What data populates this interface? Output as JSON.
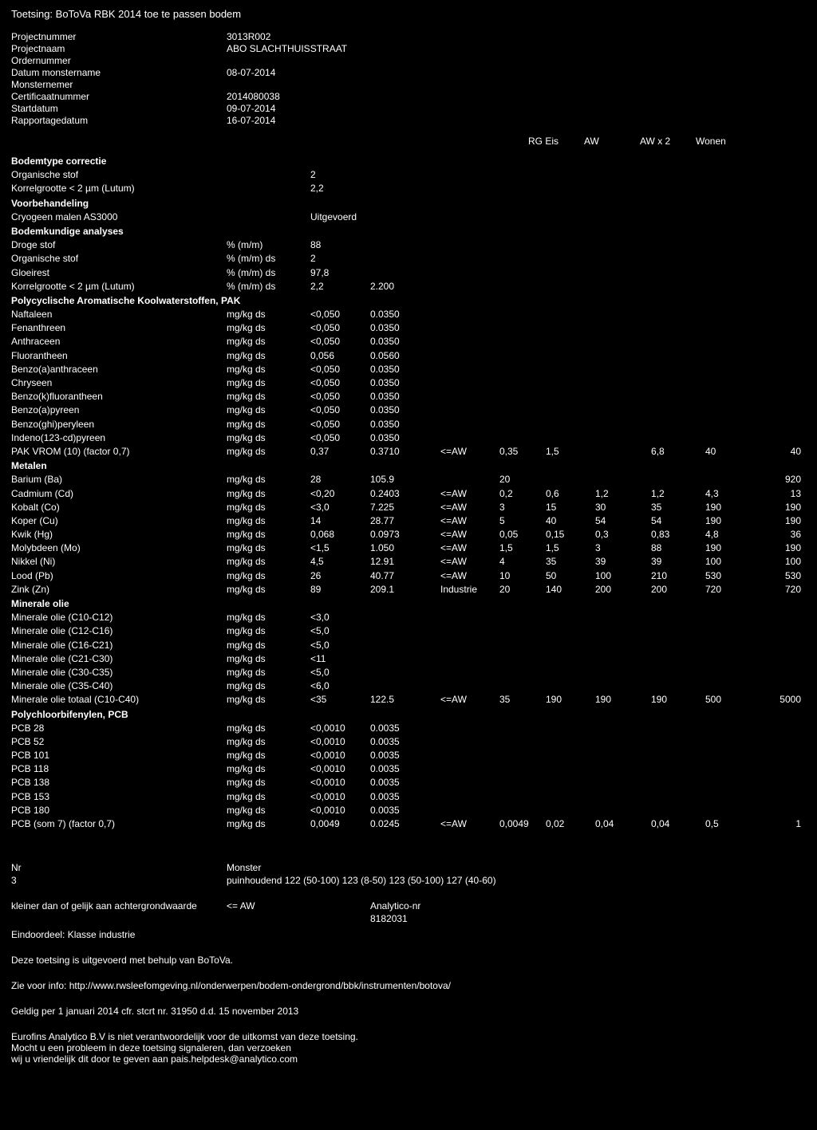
{
  "title": "Toetsing: BoToVa RBK 2014 toe te passen bodem",
  "meta": [
    {
      "label": "Projectnummer",
      "value": "3013R002"
    },
    {
      "label": "Projectnaam",
      "value": "ABO SLACHTHUISSTRAAT"
    },
    {
      "label": "Ordernummer",
      "value": ""
    },
    {
      "label": "Datum monstername",
      "value": "08-07-2014"
    },
    {
      "label": "Monsternemer",
      "value": ""
    },
    {
      "label": "Certificaatnummer",
      "value": "2014080038"
    },
    {
      "label": "Startdatum",
      "value": "09-07-2014"
    },
    {
      "label": "Rapportagedatum",
      "value": "16-07-2014"
    }
  ],
  "header_cols": [
    "RG Eis",
    "AW",
    "AW x 2",
    "Wonen"
  ],
  "sections": [
    {
      "title": "Bodemtype correctie",
      "rows": [
        {
          "name": "Organische stof",
          "unit": "",
          "raw": "2"
        },
        {
          "name": "Korrelgrootte < 2 µm (Lutum)",
          "unit": "",
          "raw": "2,2"
        }
      ]
    },
    {
      "title": "Voorbehandeling",
      "rows": [
        {
          "name": "Cryogeen malen AS3000",
          "unit": "",
          "raw": "Uitgevoerd"
        }
      ]
    },
    {
      "title": "Bodemkundige analyses",
      "rows": [
        {
          "name": "Droge stof",
          "unit": "% (m/m)",
          "raw": "88"
        },
        {
          "name": "Organische stof",
          "unit": "% (m/m) ds",
          "raw": "2"
        },
        {
          "name": "Gloeirest",
          "unit": "% (m/m) ds",
          "raw": "97,8"
        },
        {
          "name": "Korrelgrootte < 2 µm (Lutum)",
          "unit": "% (m/m) ds",
          "raw": "2,2",
          "val": "2.200"
        }
      ]
    },
    {
      "title": "Polycyclische Aromatische Koolwaterstoffen, PAK",
      "rows": [
        {
          "name": "Naftaleen",
          "unit": "mg/kg ds",
          "raw": "<0,050",
          "val": "0.0350"
        },
        {
          "name": "Fenanthreen",
          "unit": "mg/kg ds",
          "raw": "<0,050",
          "val": "0.0350"
        },
        {
          "name": "Anthraceen",
          "unit": "mg/kg ds",
          "raw": "<0,050",
          "val": "0.0350"
        },
        {
          "name": "Fluorantheen",
          "unit": "mg/kg ds",
          "raw": "0,056",
          "val": "0.0560"
        },
        {
          "name": "Benzo(a)anthraceen",
          "unit": "mg/kg ds",
          "raw": "<0,050",
          "val": "0.0350"
        },
        {
          "name": "Chryseen",
          "unit": "mg/kg ds",
          "raw": "<0,050",
          "val": "0.0350"
        },
        {
          "name": "Benzo(k)fluorantheen",
          "unit": "mg/kg ds",
          "raw": "<0,050",
          "val": "0.0350"
        },
        {
          "name": "Benzo(a)pyreen",
          "unit": "mg/kg ds",
          "raw": "<0,050",
          "val": "0.0350"
        },
        {
          "name": "Benzo(ghi)peryleen",
          "unit": "mg/kg ds",
          "raw": "<0,050",
          "val": "0.0350"
        },
        {
          "name": "Indeno(123-cd)pyreen",
          "unit": "mg/kg ds",
          "raw": "<0,050",
          "val": "0.0350"
        },
        {
          "name": "PAK VROM (10) (factor 0,7)",
          "unit": "mg/kg ds",
          "raw": "0,37",
          "val": "0.3710",
          "rg": "<=AW",
          "eis": "0,35",
          "aw": "1,5",
          "awx2": "",
          "wonen": "6,8",
          "ext1": "40",
          "ext2": "40"
        }
      ]
    },
    {
      "title": "Metalen",
      "rows": [
        {
          "name": "Barium (Ba)",
          "unit": "mg/kg ds",
          "raw": "28",
          "val": "105.9",
          "rg": "",
          "eis": "20",
          "aw": "",
          "awx2": "",
          "wonen": "",
          "ext1": "",
          "ext2": "920"
        },
        {
          "name": "Cadmium (Cd)",
          "unit": "mg/kg ds",
          "raw": "<0,20",
          "val": "0.2403",
          "rg": "<=AW",
          "eis": "0,2",
          "aw": "0,6",
          "awx2": "1,2",
          "wonen": "1,2",
          "ext1": "4,3",
          "ext2": "13"
        },
        {
          "name": "Kobalt (Co)",
          "unit": "mg/kg ds",
          "raw": "<3,0",
          "val": "7.225",
          "rg": "<=AW",
          "eis": "3",
          "aw": "15",
          "awx2": "30",
          "wonen": "35",
          "ext1": "190",
          "ext2": "190"
        },
        {
          "name": "Koper (Cu)",
          "unit": "mg/kg ds",
          "raw": "14",
          "val": "28.77",
          "rg": "<=AW",
          "eis": "5",
          "aw": "40",
          "awx2": "54",
          "wonen": "54",
          "ext1": "190",
          "ext2": "190"
        },
        {
          "name": "Kwik (Hg)",
          "unit": "mg/kg ds",
          "raw": "0,068",
          "val": "0.0973",
          "rg": "<=AW",
          "eis": "0,05",
          "aw": "0,15",
          "awx2": "0,3",
          "wonen": "0,83",
          "ext1": "4,8",
          "ext2": "36"
        },
        {
          "name": "Molybdeen (Mo)",
          "unit": "mg/kg ds",
          "raw": "<1,5",
          "val": "1.050",
          "rg": "<=AW",
          "eis": "1,5",
          "aw": "1,5",
          "awx2": "3",
          "wonen": "88",
          "ext1": "190",
          "ext2": "190"
        },
        {
          "name": "Nikkel (Ni)",
          "unit": "mg/kg ds",
          "raw": "4,5",
          "val": "12.91",
          "rg": "<=AW",
          "eis": "4",
          "aw": "35",
          "awx2": "39",
          "wonen": "39",
          "ext1": "100",
          "ext2": "100"
        },
        {
          "name": "Lood (Pb)",
          "unit": "mg/kg ds",
          "raw": "26",
          "val": "40.77",
          "rg": "<=AW",
          "eis": "10",
          "aw": "50",
          "awx2": "100",
          "wonen": "210",
          "ext1": "530",
          "ext2": "530"
        },
        {
          "name": "Zink (Zn)",
          "unit": "mg/kg ds",
          "raw": "89",
          "val": "209.1",
          "rg": "Industrie",
          "eis": "20",
          "aw": "140",
          "awx2": "200",
          "wonen": "200",
          "ext1": "720",
          "ext2": "720"
        }
      ]
    },
    {
      "title": "Minerale olie",
      "rows": [
        {
          "name": "Minerale olie (C10-C12)",
          "unit": "mg/kg ds",
          "raw": "<3,0"
        },
        {
          "name": "Minerale olie (C12-C16)",
          "unit": "mg/kg ds",
          "raw": "<5,0"
        },
        {
          "name": "Minerale olie (C16-C21)",
          "unit": "mg/kg ds",
          "raw": "<5,0"
        },
        {
          "name": "Minerale olie (C21-C30)",
          "unit": "mg/kg ds",
          "raw": "<11"
        },
        {
          "name": "Minerale olie (C30-C35)",
          "unit": "mg/kg ds",
          "raw": "<5,0"
        },
        {
          "name": "Minerale olie (C35-C40)",
          "unit": "mg/kg ds",
          "raw": "<6,0"
        },
        {
          "name": "Minerale olie totaal (C10-C40)",
          "unit": "mg/kg ds",
          "raw": "<35",
          "val": "122.5",
          "rg": "<=AW",
          "eis": "35",
          "aw": "190",
          "awx2": "190",
          "wonen": "190",
          "ext1": "500",
          "ext2": "5000"
        }
      ]
    },
    {
      "title": "Polychloorbifenylen, PCB",
      "rows": [
        {
          "name": "PCB 28",
          "unit": "mg/kg ds",
          "raw": "<0,0010",
          "val": "0.0035"
        },
        {
          "name": "PCB 52",
          "unit": "mg/kg ds",
          "raw": "<0,0010",
          "val": "0.0035"
        },
        {
          "name": "PCB 101",
          "unit": "mg/kg ds",
          "raw": "<0,0010",
          "val": "0.0035"
        },
        {
          "name": "PCB 118",
          "unit": "mg/kg ds",
          "raw": "<0,0010",
          "val": "0.0035"
        },
        {
          "name": "PCB 138",
          "unit": "mg/kg ds",
          "raw": "<0,0010",
          "val": "0.0035"
        },
        {
          "name": "PCB 153",
          "unit": "mg/kg ds",
          "raw": "<0,0010",
          "val": "0.0035"
        },
        {
          "name": "PCB 180",
          "unit": "mg/kg ds",
          "raw": "<0,0010",
          "val": "0.0035"
        },
        {
          "name": "PCB (som 7) (factor 0,7)",
          "unit": "mg/kg ds",
          "raw": "0,0049",
          "val": "0.0245",
          "rg": "<=AW",
          "eis": "0,0049",
          "aw": "0,02",
          "awx2": "0,04",
          "wonen": "0,04",
          "ext1": "0,5",
          "ext2": "1"
        }
      ]
    }
  ],
  "footer": {
    "nr_label": "Nr",
    "nr_value": "3",
    "monster_label": "Monster",
    "monster_value": "puinhoudend 122 (50-100) 123 (8-50) 123 (50-100) 127 (40-60)",
    "kleiner_label": "kleiner dan of gelijk aan achtergrondwaarde",
    "kleiner_value": "<= AW",
    "analytico_label": "Analytico-nr",
    "analytico_value": "8182031",
    "eindoordeel": "Eindoordeel: Klasse industrie",
    "para1": "Deze toetsing is uitgevoerd met behulp van BoToVa.",
    "para2": "Zie voor info: http://www.rwsleefomgeving.nl/onderwerpen/bodem-ondergrond/bbk/instrumenten/botova/",
    "para3": "Geldig per 1 januari 2014 cfr. stcrt nr. 31950 d.d. 15 november 2013",
    "para4a": "Eurofins Analytico B.V is niet verantwoordelijk voor de uitkomst van deze toetsing.",
    "para4b": "Mocht u een probleem in deze toetsing signaleren, dan verzoeken",
    "para4c": "wij u vriendelijk dit door te geven aan pais.helpdesk@analytico.com"
  }
}
